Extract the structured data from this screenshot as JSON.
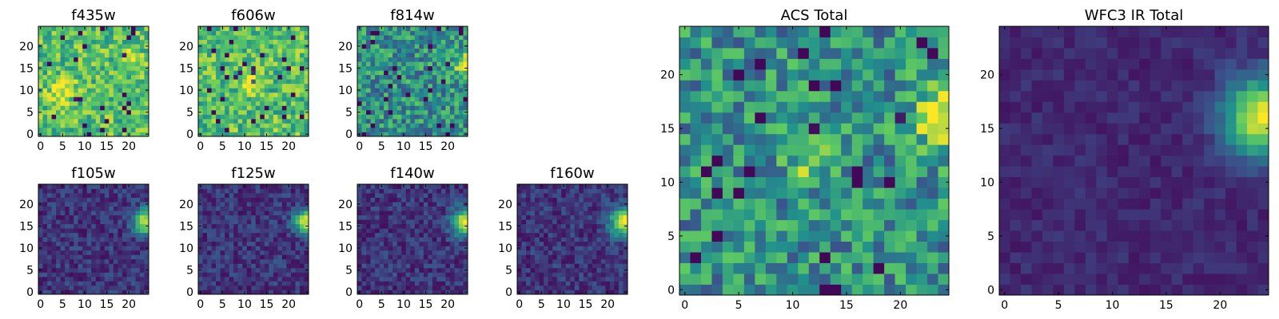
{
  "figure": {
    "colormap": [
      "#440154",
      "#3b528b",
      "#21918c",
      "#5ec962",
      "#fde725"
    ]
  },
  "chart_data": [
    {
      "type": "heatmap",
      "title": "f435w",
      "grid_size": 25,
      "xlim": [
        0,
        24
      ],
      "ylim": [
        0,
        24
      ],
      "xticks": [
        0,
        5,
        10,
        15,
        20
      ],
      "yticks": [
        0,
        5,
        10,
        15,
        20
      ],
      "pattern": "noise_high",
      "seed": 11,
      "sources": [
        {
          "x": 5,
          "y": 10,
          "amp": 0.25,
          "sigma": 2
        },
        {
          "x": 21,
          "y": 17,
          "amp": 0.2,
          "sigma": 1.5
        }
      ]
    },
    {
      "type": "heatmap",
      "title": "f606w",
      "grid_size": 25,
      "xlim": [
        0,
        24
      ],
      "ylim": [
        0,
        24
      ],
      "xticks": [
        0,
        5,
        10,
        15,
        20
      ],
      "yticks": [
        0,
        5,
        10,
        15,
        20
      ],
      "pattern": "noise_high",
      "seed": 23,
      "sources": [
        {
          "x": 11,
          "y": 12,
          "amp": 0.35,
          "sigma": 1.5
        }
      ]
    },
    {
      "type": "heatmap",
      "title": "f814w",
      "grid_size": 25,
      "xlim": [
        0,
        24
      ],
      "ylim": [
        0,
        24
      ],
      "xticks": [
        0,
        5,
        10,
        15,
        20
      ],
      "yticks": [
        0,
        5,
        10,
        15,
        20
      ],
      "pattern": "noise_mid",
      "seed": 37,
      "sources": [
        {
          "x": 24,
          "y": 16,
          "amp": 0.55,
          "sigma": 1.6
        }
      ]
    },
    {
      "type": "heatmap",
      "title": "f105w",
      "grid_size": 25,
      "xlim": [
        0,
        24
      ],
      "ylim": [
        0,
        24
      ],
      "xticks": [
        0,
        5,
        10,
        15,
        20
      ],
      "yticks": [
        0,
        5,
        10,
        15,
        20
      ],
      "pattern": "noise_low",
      "seed": 41,
      "sources": [
        {
          "x": 24,
          "y": 16,
          "amp": 0.8,
          "sigma": 2
        }
      ]
    },
    {
      "type": "heatmap",
      "title": "f125w",
      "grid_size": 25,
      "xlim": [
        0,
        24
      ],
      "ylim": [
        0,
        24
      ],
      "xticks": [
        0,
        5,
        10,
        15,
        20
      ],
      "yticks": [
        0,
        5,
        10,
        15,
        20
      ],
      "pattern": "noise_low",
      "seed": 53,
      "sources": [
        {
          "x": 24,
          "y": 16,
          "amp": 0.8,
          "sigma": 2
        }
      ]
    },
    {
      "type": "heatmap",
      "title": "f140w",
      "grid_size": 25,
      "xlim": [
        0,
        24
      ],
      "ylim": [
        0,
        24
      ],
      "xticks": [
        0,
        5,
        10,
        15,
        20
      ],
      "yticks": [
        0,
        5,
        10,
        15,
        20
      ],
      "pattern": "noise_low",
      "seed": 67,
      "sources": [
        {
          "x": 24,
          "y": 16,
          "amp": 0.8,
          "sigma": 2.2
        }
      ]
    },
    {
      "type": "heatmap",
      "title": "f160w",
      "grid_size": 25,
      "xlim": [
        0,
        24
      ],
      "ylim": [
        0,
        24
      ],
      "xticks": [
        0,
        5,
        10,
        15,
        20
      ],
      "yticks": [
        0,
        5,
        10,
        15,
        20
      ],
      "pattern": "noise_low",
      "seed": 79,
      "sources": [
        {
          "x": 24,
          "y": 16,
          "amp": 0.8,
          "sigma": 2.4
        }
      ]
    },
    {
      "type": "heatmap",
      "title": "ACS Total",
      "grid_size": 25,
      "xlim": [
        0,
        24
      ],
      "ylim": [
        0,
        24
      ],
      "xticks": [
        0,
        5,
        10,
        15,
        20
      ],
      "yticks": [
        0,
        5,
        10,
        15,
        20
      ],
      "pattern": "noise_mid",
      "seed": 97,
      "sources": [
        {
          "x": 11.5,
          "y": 12,
          "amp": 0.35,
          "sigma": 1.3
        },
        {
          "x": 24,
          "y": 16,
          "amp": 0.45,
          "sigma": 2
        }
      ]
    },
    {
      "type": "heatmap",
      "title": "WFC3 IR Total",
      "grid_size": 25,
      "xlim": [
        0,
        24
      ],
      "ylim": [
        0,
        24
      ],
      "xticks": [
        0,
        5,
        10,
        15,
        20
      ],
      "yticks": [
        0,
        5,
        10,
        15,
        20
      ],
      "pattern": "smooth_low",
      "seed": 101,
      "sources": [
        {
          "x": 24,
          "y": 16,
          "amp": 0.85,
          "sigma": 2.6
        }
      ]
    }
  ]
}
